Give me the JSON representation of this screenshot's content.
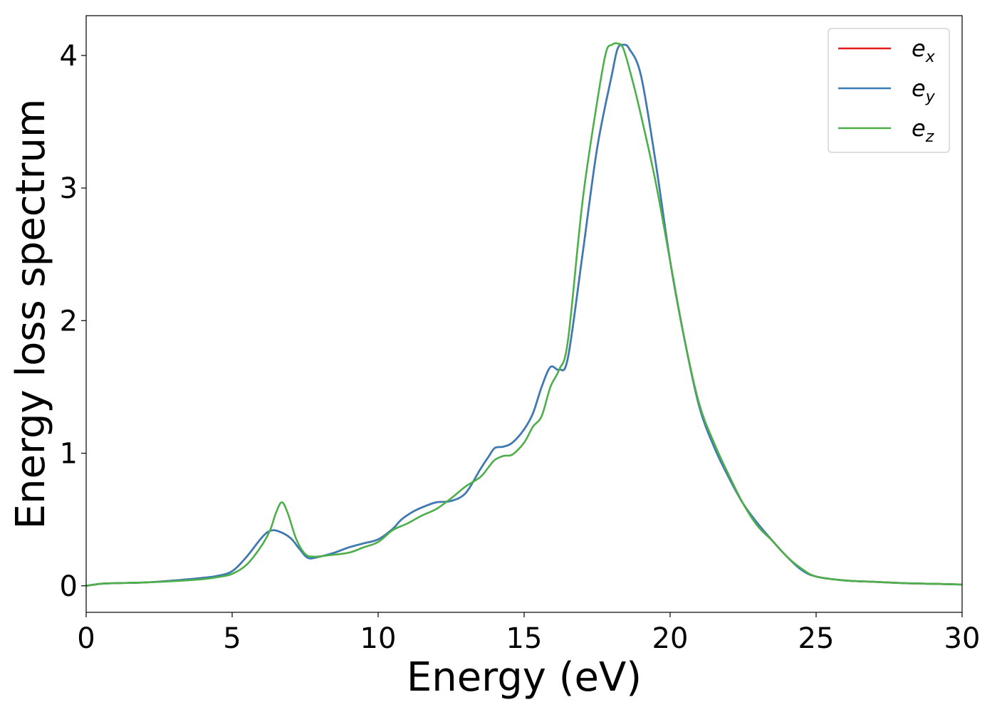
{
  "chart_data": {
    "type": "line",
    "xlabel": "Energy (eV)",
    "ylabel": "Energy loss spectrum",
    "xlim": [
      0,
      30
    ],
    "ylim": [
      -0.2,
      4.3
    ],
    "xticks": [
      0,
      5,
      10,
      15,
      20,
      25,
      30
    ],
    "yticks": [
      0,
      1,
      2,
      3,
      4
    ],
    "grid": false,
    "legend_position": "top-right",
    "series": [
      {
        "name": "e_x",
        "label_base": "e",
        "label_sub": "x",
        "color": "#e41a1c",
        "x": [
          0,
          0.5,
          1,
          2,
          3,
          4,
          4.5,
          5,
          5.5,
          6,
          6.3,
          6.6,
          7,
          7.3,
          7.6,
          8,
          8.5,
          9,
          9.5,
          10,
          10.5,
          10.8,
          11.2,
          11.6,
          12,
          12.5,
          13,
          13.5,
          13.8,
          14,
          14.3,
          14.6,
          15,
          15.3,
          15.6,
          15.9,
          16.2,
          16.5,
          17,
          17.5,
          18,
          18.2,
          18.4,
          18.6,
          19,
          19.5,
          20,
          20.5,
          21,
          21.5,
          22,
          22.5,
          23,
          23.5,
          24,
          24.5,
          25,
          26,
          27,
          28,
          29,
          30
        ],
        "y": [
          0,
          0.015,
          0.02,
          0.025,
          0.04,
          0.06,
          0.075,
          0.11,
          0.22,
          0.36,
          0.415,
          0.41,
          0.36,
          0.28,
          0.21,
          0.22,
          0.25,
          0.29,
          0.32,
          0.35,
          0.43,
          0.5,
          0.56,
          0.6,
          0.63,
          0.64,
          0.7,
          0.88,
          0.98,
          1.04,
          1.05,
          1.08,
          1.18,
          1.3,
          1.5,
          1.65,
          1.63,
          1.72,
          2.5,
          3.3,
          3.85,
          4.05,
          4.08,
          4.05,
          3.85,
          3.2,
          2.45,
          1.85,
          1.35,
          1.05,
          0.82,
          0.62,
          0.47,
          0.34,
          0.22,
          0.12,
          0.07,
          0.04,
          0.03,
          0.02,
          0.015,
          0.01
        ]
      },
      {
        "name": "e_y",
        "label_base": "e",
        "label_sub": "y",
        "color": "#377eb8",
        "x": [
          0,
          0.5,
          1,
          2,
          3,
          4,
          4.5,
          5,
          5.5,
          6,
          6.3,
          6.6,
          7,
          7.3,
          7.6,
          8,
          8.5,
          9,
          9.5,
          10,
          10.5,
          10.8,
          11.2,
          11.6,
          12,
          12.5,
          13,
          13.5,
          13.8,
          14,
          14.3,
          14.6,
          15,
          15.3,
          15.6,
          15.9,
          16.2,
          16.5,
          17,
          17.5,
          18,
          18.2,
          18.4,
          18.6,
          19,
          19.5,
          20,
          20.5,
          21,
          21.5,
          22,
          22.5,
          23,
          23.5,
          24,
          24.5,
          25,
          26,
          27,
          28,
          29,
          30
        ],
        "y": [
          0,
          0.015,
          0.02,
          0.025,
          0.04,
          0.06,
          0.075,
          0.11,
          0.22,
          0.36,
          0.415,
          0.41,
          0.36,
          0.28,
          0.21,
          0.22,
          0.25,
          0.29,
          0.32,
          0.35,
          0.43,
          0.5,
          0.56,
          0.6,
          0.63,
          0.64,
          0.7,
          0.88,
          0.98,
          1.04,
          1.05,
          1.08,
          1.18,
          1.3,
          1.5,
          1.65,
          1.63,
          1.72,
          2.5,
          3.3,
          3.85,
          4.05,
          4.08,
          4.05,
          3.85,
          3.2,
          2.45,
          1.85,
          1.35,
          1.05,
          0.82,
          0.62,
          0.47,
          0.34,
          0.22,
          0.12,
          0.07,
          0.04,
          0.03,
          0.02,
          0.015,
          0.01
        ]
      },
      {
        "name": "e_z",
        "label_base": "e",
        "label_sub": "z",
        "color": "#4daf4a",
        "x": [
          0,
          0.5,
          1,
          2,
          3,
          4,
          4.5,
          5,
          5.5,
          6,
          6.3,
          6.5,
          6.7,
          6.9,
          7.2,
          7.5,
          7.8,
          8.3,
          9,
          9.5,
          10,
          10.5,
          11,
          11.5,
          12,
          12.5,
          13,
          13.5,
          13.8,
          14,
          14.3,
          14.6,
          15,
          15.3,
          15.6,
          15.9,
          16.2,
          16.5,
          17,
          17.5,
          17.8,
          18,
          18.2,
          18.4,
          18.7,
          19,
          19.5,
          20,
          20.5,
          21,
          21.5,
          22,
          22.5,
          23,
          23.5,
          24,
          24.5,
          25,
          26,
          27,
          28,
          29,
          30
        ],
        "y": [
          0,
          0.015,
          0.02,
          0.025,
          0.035,
          0.05,
          0.065,
          0.09,
          0.16,
          0.3,
          0.42,
          0.55,
          0.63,
          0.55,
          0.35,
          0.24,
          0.22,
          0.23,
          0.25,
          0.29,
          0.33,
          0.42,
          0.47,
          0.53,
          0.58,
          0.66,
          0.75,
          0.82,
          0.9,
          0.95,
          0.98,
          0.99,
          1.08,
          1.2,
          1.28,
          1.5,
          1.63,
          1.85,
          2.9,
          3.65,
          4.02,
          4.08,
          4.09,
          4.05,
          3.82,
          3.55,
          3.05,
          2.45,
          1.85,
          1.37,
          1.08,
          0.84,
          0.62,
          0.45,
          0.34,
          0.22,
          0.13,
          0.07,
          0.04,
          0.03,
          0.02,
          0.015,
          0.01
        ]
      }
    ]
  }
}
